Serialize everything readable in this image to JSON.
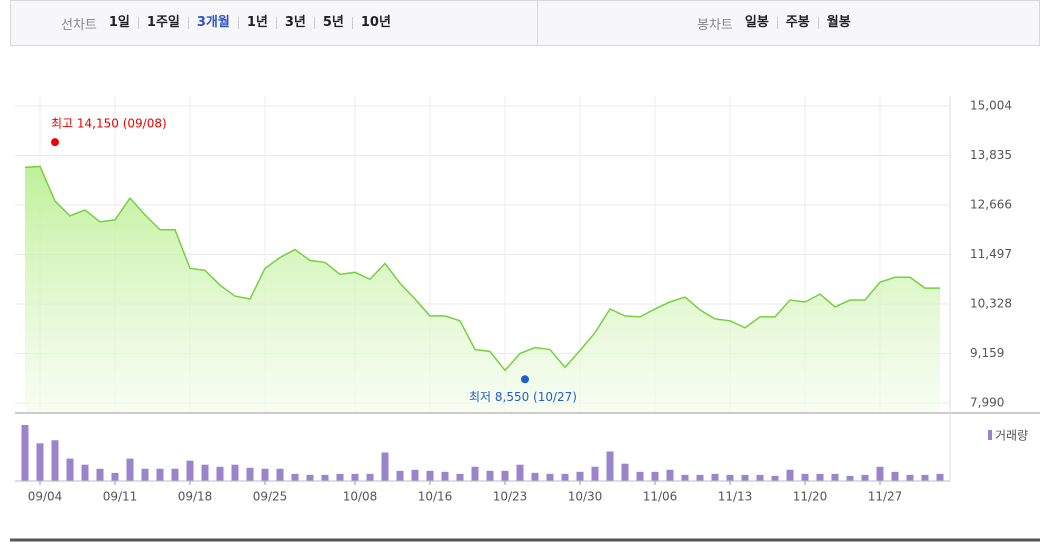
{
  "tabs": {
    "line_label": "선차트",
    "line_periods": [
      "1일",
      "1주일",
      "3개월",
      "1년",
      "3년",
      "5년",
      "10년"
    ],
    "active_index": 2,
    "candle_label": "봉차트",
    "candle_types": [
      "일봉",
      "주봉",
      "월봉"
    ]
  },
  "chart_data": [
    {
      "type": "line",
      "fill": true,
      "color": "#74d13c",
      "values": [
        13554,
        13578,
        12760,
        12409,
        12549,
        12269,
        12315,
        12830,
        12432,
        12082,
        12082,
        11170,
        11123,
        10772,
        10515,
        10445,
        11170,
        11427,
        11614,
        11357,
        11310,
        11029,
        11076,
        10912,
        11287,
        10819,
        10445,
        10047,
        10047,
        9931,
        9253,
        9206,
        8762,
        9159,
        9300,
        9253,
        8832,
        9230,
        9650,
        10211,
        10047,
        10024,
        10211,
        10375,
        10492,
        10188,
        9977,
        9931,
        9767,
        10024,
        10024,
        10422,
        10375,
        10562,
        10258,
        10422,
        10422,
        10843,
        10959,
        10959,
        10702,
        10702
      ],
      "ylim": [
        7990,
        15004
      ],
      "yticks": [
        {
          "value": 7990,
          "label": "7,990"
        },
        {
          "value": 9159,
          "label": "9,159"
        },
        {
          "value": 10328,
          "label": "10,328"
        },
        {
          "value": 11497,
          "label": "11,497"
        },
        {
          "value": 12666,
          "label": "12,666"
        },
        {
          "value": 13835,
          "label": "13,835"
        },
        {
          "value": 15004,
          "label": "15,004"
        }
      ],
      "grid": true,
      "annotations": [
        {
          "text": "최고 14,150 (09/08)",
          "value": 14150,
          "color": "#ee0000"
        },
        {
          "text": "최저 8,550 (10/27)",
          "value": 8550,
          "color": "#1f5fcf"
        }
      ]
    },
    {
      "type": "bar",
      "categories": [
        null,
        "09/04",
        null,
        null,
        null,
        null,
        "09/11",
        null,
        null,
        null,
        null,
        "09/18",
        null,
        null,
        null,
        null,
        "09/25",
        null,
        null,
        null,
        null,
        null,
        "10/08",
        null,
        null,
        null,
        null,
        "10/16",
        null,
        null,
        null,
        null,
        "10/23",
        null,
        null,
        null,
        null,
        "10/30",
        null,
        null,
        null,
        null,
        "11/06",
        null,
        null,
        null,
        null,
        "11/13",
        null,
        null,
        null,
        null,
        "11/20",
        null,
        null,
        null,
        null,
        "11/27",
        null,
        null,
        null,
        null
      ],
      "series": [
        {
          "name": "거래량",
          "color": "#9a85cc",
          "values": [
            55,
            37,
            40,
            22,
            16,
            12,
            8,
            22,
            12,
            12,
            12,
            20,
            16,
            14,
            16,
            13,
            12,
            12,
            7,
            6,
            6,
            7,
            7,
            7,
            28,
            10,
            11,
            10,
            9,
            7,
            14,
            10,
            10,
            16,
            8,
            7,
            7,
            9,
            14,
            29,
            17,
            9,
            9,
            11,
            6,
            6,
            7,
            6,
            6,
            6,
            5,
            11,
            7,
            7,
            7,
            5,
            6,
            14,
            9,
            6,
            6,
            7
          ]
        }
      ]
    }
  ]
}
